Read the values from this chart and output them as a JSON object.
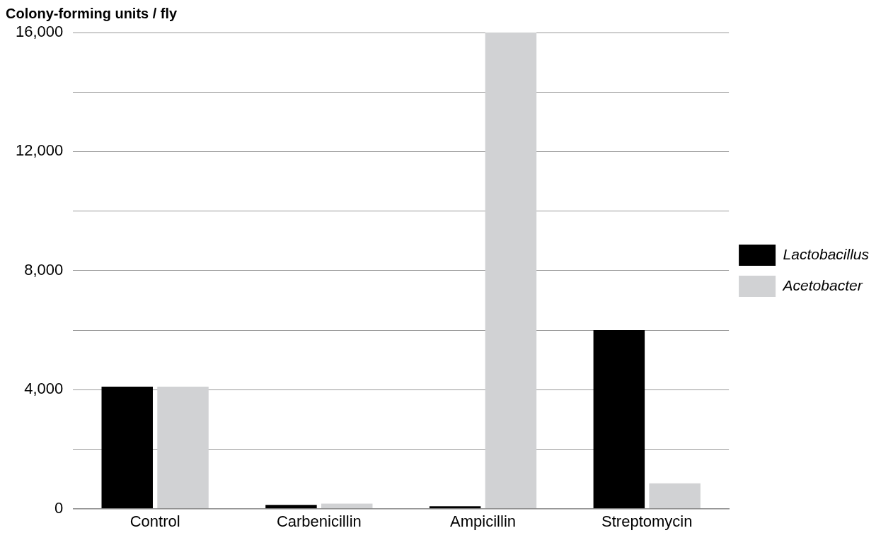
{
  "chart_data": {
    "type": "bar",
    "title": "Colony-forming units / fly",
    "categories": [
      "Control",
      "Carbenicillin",
      "Ampicillin",
      "Streptomycin"
    ],
    "series": [
      {
        "name": "Lactobacillus",
        "color": "#000000",
        "values": [
          4100,
          130,
          80,
          6000
        ]
      },
      {
        "name": "Acetobacter",
        "color": "#d1d2d4",
        "values": [
          4100,
          170,
          16000,
          850
        ]
      }
    ],
    "ylim": [
      0,
      16000
    ],
    "yticks": [
      {
        "value": 0,
        "label": "0"
      },
      {
        "value": 2000,
        "label": null
      },
      {
        "value": 4000,
        "label": "4,000"
      },
      {
        "value": 6000,
        "label": null
      },
      {
        "value": 8000,
        "label": "8,000"
      },
      {
        "value": 10000,
        "label": null
      },
      {
        "value": 12000,
        "label": "12,000"
      },
      {
        "value": 14000,
        "label": null
      },
      {
        "value": 16000,
        "label": "16,000"
      }
    ],
    "grid": "y",
    "legend": "right"
  }
}
